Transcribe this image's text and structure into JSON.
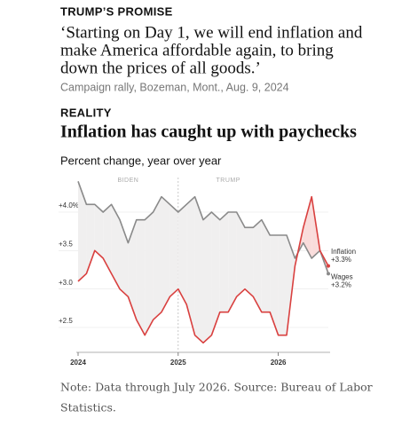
{
  "header": {
    "kicker": "TRUMP’S PROMISE",
    "quote_lines": [
      "‘Starting on Day 1, we will end inflation and",
      "make America affordable again, to bring",
      "down the prices of all goods.’"
    ],
    "source": "Campaign rally, Bozeman, Mont., Aug. 9, 2024",
    "reality": "REALITY",
    "headline": "Inflation has caught up with paychecks"
  },
  "chart_data": {
    "type": "line",
    "subtitle": "Percent change, year over year",
    "categories": [
      "2024",
      null,
      null,
      null,
      null,
      null,
      null,
      null,
      null,
      null,
      null,
      null,
      "2025",
      null,
      null,
      null,
      null,
      null,
      null,
      null,
      null,
      null,
      null,
      null,
      "2026",
      null,
      null,
      null,
      null,
      null,
      null
    ],
    "series": [
      {
        "name": "Wages",
        "color": "#8a8a8a",
        "end_value_label": "+3.2%",
        "values": [
          4.4,
          4.1,
          4.1,
          4.0,
          4.1,
          3.9,
          3.6,
          3.9,
          3.9,
          4.0,
          4.2,
          4.1,
          4.0,
          4.1,
          4.2,
          3.9,
          4.0,
          3.9,
          4.0,
          4.0,
          3.8,
          3.8,
          3.9,
          3.7,
          3.7,
          3.7,
          3.4,
          3.6,
          3.4,
          3.5,
          3.2
        ]
      },
      {
        "name": "Inflation",
        "color": "#d9403f",
        "end_value_label": "+3.3%",
        "values": [
          3.1,
          3.2,
          3.5,
          3.4,
          3.2,
          3.0,
          2.9,
          2.6,
          2.4,
          2.6,
          2.7,
          2.9,
          3.0,
          2.8,
          2.4,
          2.3,
          2.4,
          2.7,
          2.7,
          2.9,
          3.0,
          2.9,
          2.7,
          2.7,
          2.4,
          2.4,
          3.3,
          3.8,
          4.2,
          3.5,
          3.3
        ]
      }
    ],
    "ylim": [
      2.2,
      4.45
    ],
    "yticks": [
      {
        "value": 2.5,
        "label": "+2.5"
      },
      {
        "value": 3.0,
        "label": "+3.0"
      },
      {
        "value": 3.5,
        "label": "+3.5"
      },
      {
        "value": 4.0,
        "label": "+4.0%"
      }
    ],
    "grid": true,
    "annotations": [
      {
        "text": "BIDEN",
        "index": 6
      },
      {
        "text": "TRUMP",
        "index": 18
      }
    ],
    "divider_index": 12
  },
  "note_lines": [
    "Note: Data through July 2026. Source: Bureau of Labor",
    "Statistics."
  ]
}
